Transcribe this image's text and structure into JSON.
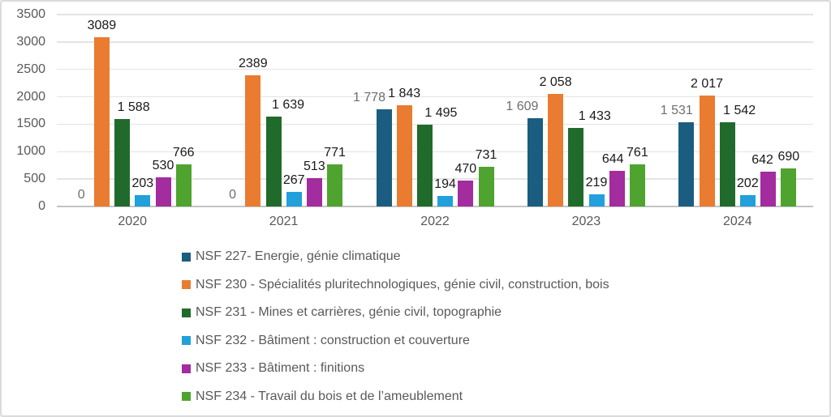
{
  "chart_data": {
    "type": "bar",
    "title": "",
    "categories": [
      "2020",
      "2021",
      "2022",
      "2023",
      "2024"
    ],
    "series": [
      {
        "name": "NSF 227- Energie, génie climatique",
        "color": "#1b5d80",
        "values": [
          0,
          0,
          1778,
          1609,
          1531
        ],
        "data_labels": [
          "0",
          "0",
          "1 778",
          "1 609",
          "1 531"
        ],
        "label_color": "#6e6e6e",
        "label_dx": [
          0,
          0,
          -18,
          -16,
          -12
        ]
      },
      {
        "name": "NSF 230 - Spécialités pluritechnologiques, génie civil, construction, bois",
        "color": "#e97c30",
        "values": [
          3089,
          2389,
          1843,
          2058,
          2017
        ],
        "data_labels": [
          "3089",
          "2389",
          "1 843",
          "2 058",
          "2 017"
        ],
        "label_color": "#1a1a1a",
        "label_dx": [
          0,
          0,
          0,
          0,
          0
        ]
      },
      {
        "name": "NSF 231 - Mines et carrières, génie civil, topographie",
        "color": "#206b2b",
        "values": [
          1588,
          1639,
          1495,
          1433,
          1542
        ],
        "data_labels": [
          "1 588",
          "1 639",
          "1 495",
          "1 433",
          "1 542"
        ],
        "label_color": "#1a1a1a",
        "label_dx": [
          14,
          18,
          20,
          23,
          15
        ]
      },
      {
        "name": "NSF 232 - Bâtiment : construction et couverture",
        "color": "#21a0db",
        "values": [
          203,
          267,
          194,
          219,
          202
        ],
        "data_labels": [
          "203",
          "267",
          "194",
          "219",
          "202"
        ],
        "label_color": "#1a1a1a",
        "label_dx": [
          0,
          0,
          0,
          0,
          0
        ]
      },
      {
        "name": "NSF 233 - Bâtiment : finitions",
        "color": "#a32c9e",
        "values": [
          530,
          513,
          470,
          644,
          642
        ],
        "data_labels": [
          "530",
          "513",
          "470",
          "644",
          "642"
        ],
        "label_color": "#1a1a1a",
        "label_dx": [
          0,
          0,
          0,
          -5,
          -7
        ]
      },
      {
        "name": "NSF 234 - Travail du bois et de l’ameublement",
        "color": "#4fa32f",
        "values": [
          766,
          771,
          731,
          761,
          690
        ],
        "data_labels": [
          "766",
          "771",
          "731",
          "761",
          "690"
        ],
        "label_color": "#1a1a1a",
        "label_dx": [
          0,
          0,
          0,
          0,
          0
        ]
      }
    ],
    "ylim": [
      0,
      3500
    ],
    "yticks": [
      0,
      500,
      1000,
      1500,
      2000,
      2500,
      3000,
      3500
    ],
    "grid": true,
    "legend_position": "bottom-left"
  },
  "colors": {
    "background": "#ffffff",
    "frame_border": "#dbdbdb",
    "gridline": "#e4e4e4",
    "axis_line": "#c3c3c3",
    "tick_text": "#595959",
    "legend_text": "#595959"
  }
}
